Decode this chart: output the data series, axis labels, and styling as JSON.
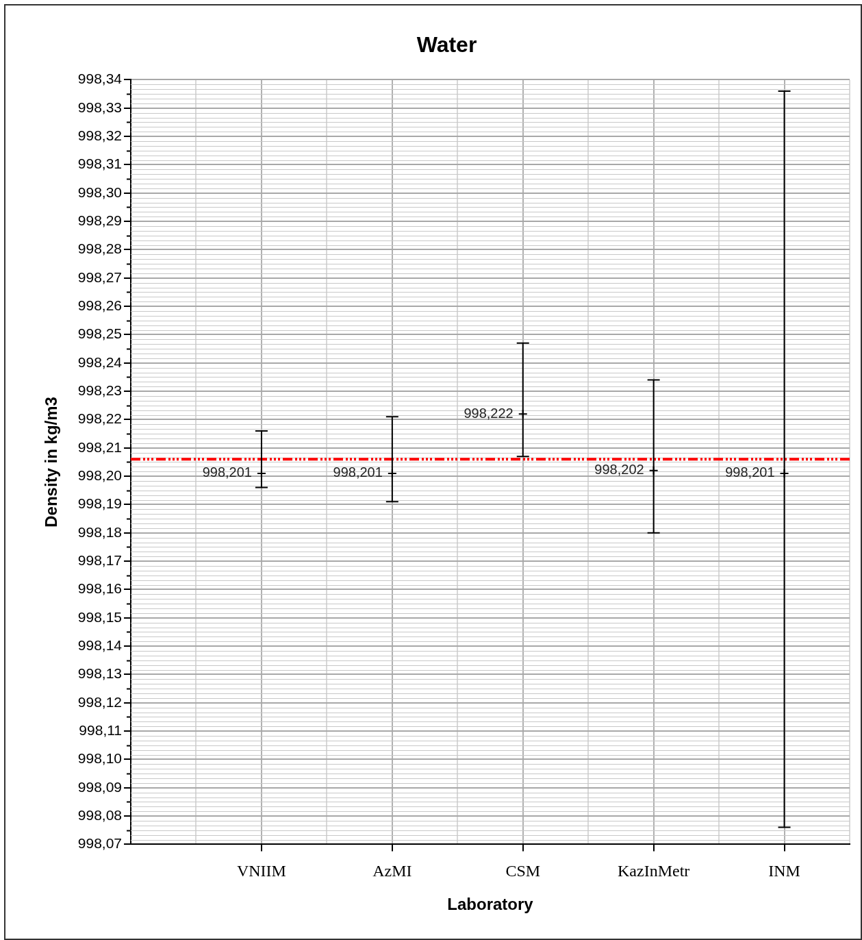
{
  "chart_data": {
    "type": "scatter",
    "title": "Water",
    "xlabel": "Laboratory",
    "ylabel": "Density in kg/m3",
    "categories": [
      "VNIIM",
      "AzMI",
      "CSM",
      "KazInMetr",
      "INM"
    ],
    "series": [
      {
        "color": "#000000",
        "values": [
          998.201,
          998.201,
          998.222,
          998.202,
          998.201
        ],
        "errors": [
          [
            998.196,
            998.216
          ],
          [
            998.191,
            998.221
          ],
          [
            998.207,
            998.247
          ],
          [
            998.18,
            998.234
          ],
          [
            998.076,
            998.336
          ]
        ]
      }
    ],
    "annotations": [
      {
        "text": "998,201",
        "x": "VNIIM",
        "y": 998.201
      },
      {
        "text": "998,201",
        "x": "AzMI",
        "y": 998.201
      },
      {
        "text": "998,222",
        "x": "CSM",
        "y": 998.222
      },
      {
        "text": "998,202",
        "x": "KazInMetr",
        "y": 998.202
      },
      {
        "text": "998,201",
        "x": "INM",
        "y": 998.201
      }
    ],
    "marker": "cross",
    "grid": true,
    "legend": false,
    "ylim": [
      998.07,
      998.34
    ],
    "yticks": [
      {
        "value": 998.07,
        "label": "998,07"
      },
      {
        "value": 998.08,
        "label": "998,08"
      },
      {
        "value": 998.09,
        "label": "998,09"
      },
      {
        "value": 998.1,
        "label": "998,10"
      },
      {
        "value": 998.11,
        "label": "998,11"
      },
      {
        "value": 998.12,
        "label": "998,12"
      },
      {
        "value": 998.13,
        "label": "998,13"
      },
      {
        "value": 998.14,
        "label": "998,14"
      },
      {
        "value": 998.15,
        "label": "998,15"
      },
      {
        "value": 998.16,
        "label": "998,16"
      },
      {
        "value": 998.17,
        "label": "998,17"
      },
      {
        "value": 998.18,
        "label": "998,18"
      },
      {
        "value": 998.19,
        "label": "998,19"
      },
      {
        "value": 998.2,
        "label": "998,20"
      },
      {
        "value": 998.21,
        "label": "998,21"
      },
      {
        "value": 998.22,
        "label": "998,22"
      },
      {
        "value": 998.23,
        "label": "998,23"
      },
      {
        "value": 998.24,
        "label": "998,24"
      },
      {
        "value": 998.25,
        "label": "998,25"
      },
      {
        "value": 998.26,
        "label": "998,26"
      },
      {
        "value": 998.27,
        "label": "998,27"
      },
      {
        "value": 998.28,
        "label": "998,28"
      },
      {
        "value": 998.29,
        "label": "998,29"
      },
      {
        "value": 998.3,
        "label": "998,30"
      },
      {
        "value": 998.31,
        "label": "998,31"
      },
      {
        "value": 998.32,
        "label": "998,32"
      },
      {
        "value": 998.33,
        "label": "998,33"
      },
      {
        "value": 998.34,
        "label": "998,34"
      }
    ],
    "ref_lines": [
      {
        "axis": "y",
        "value": 998.206,
        "color": "#ff0000",
        "line_style": "dashed"
      }
    ]
  }
}
